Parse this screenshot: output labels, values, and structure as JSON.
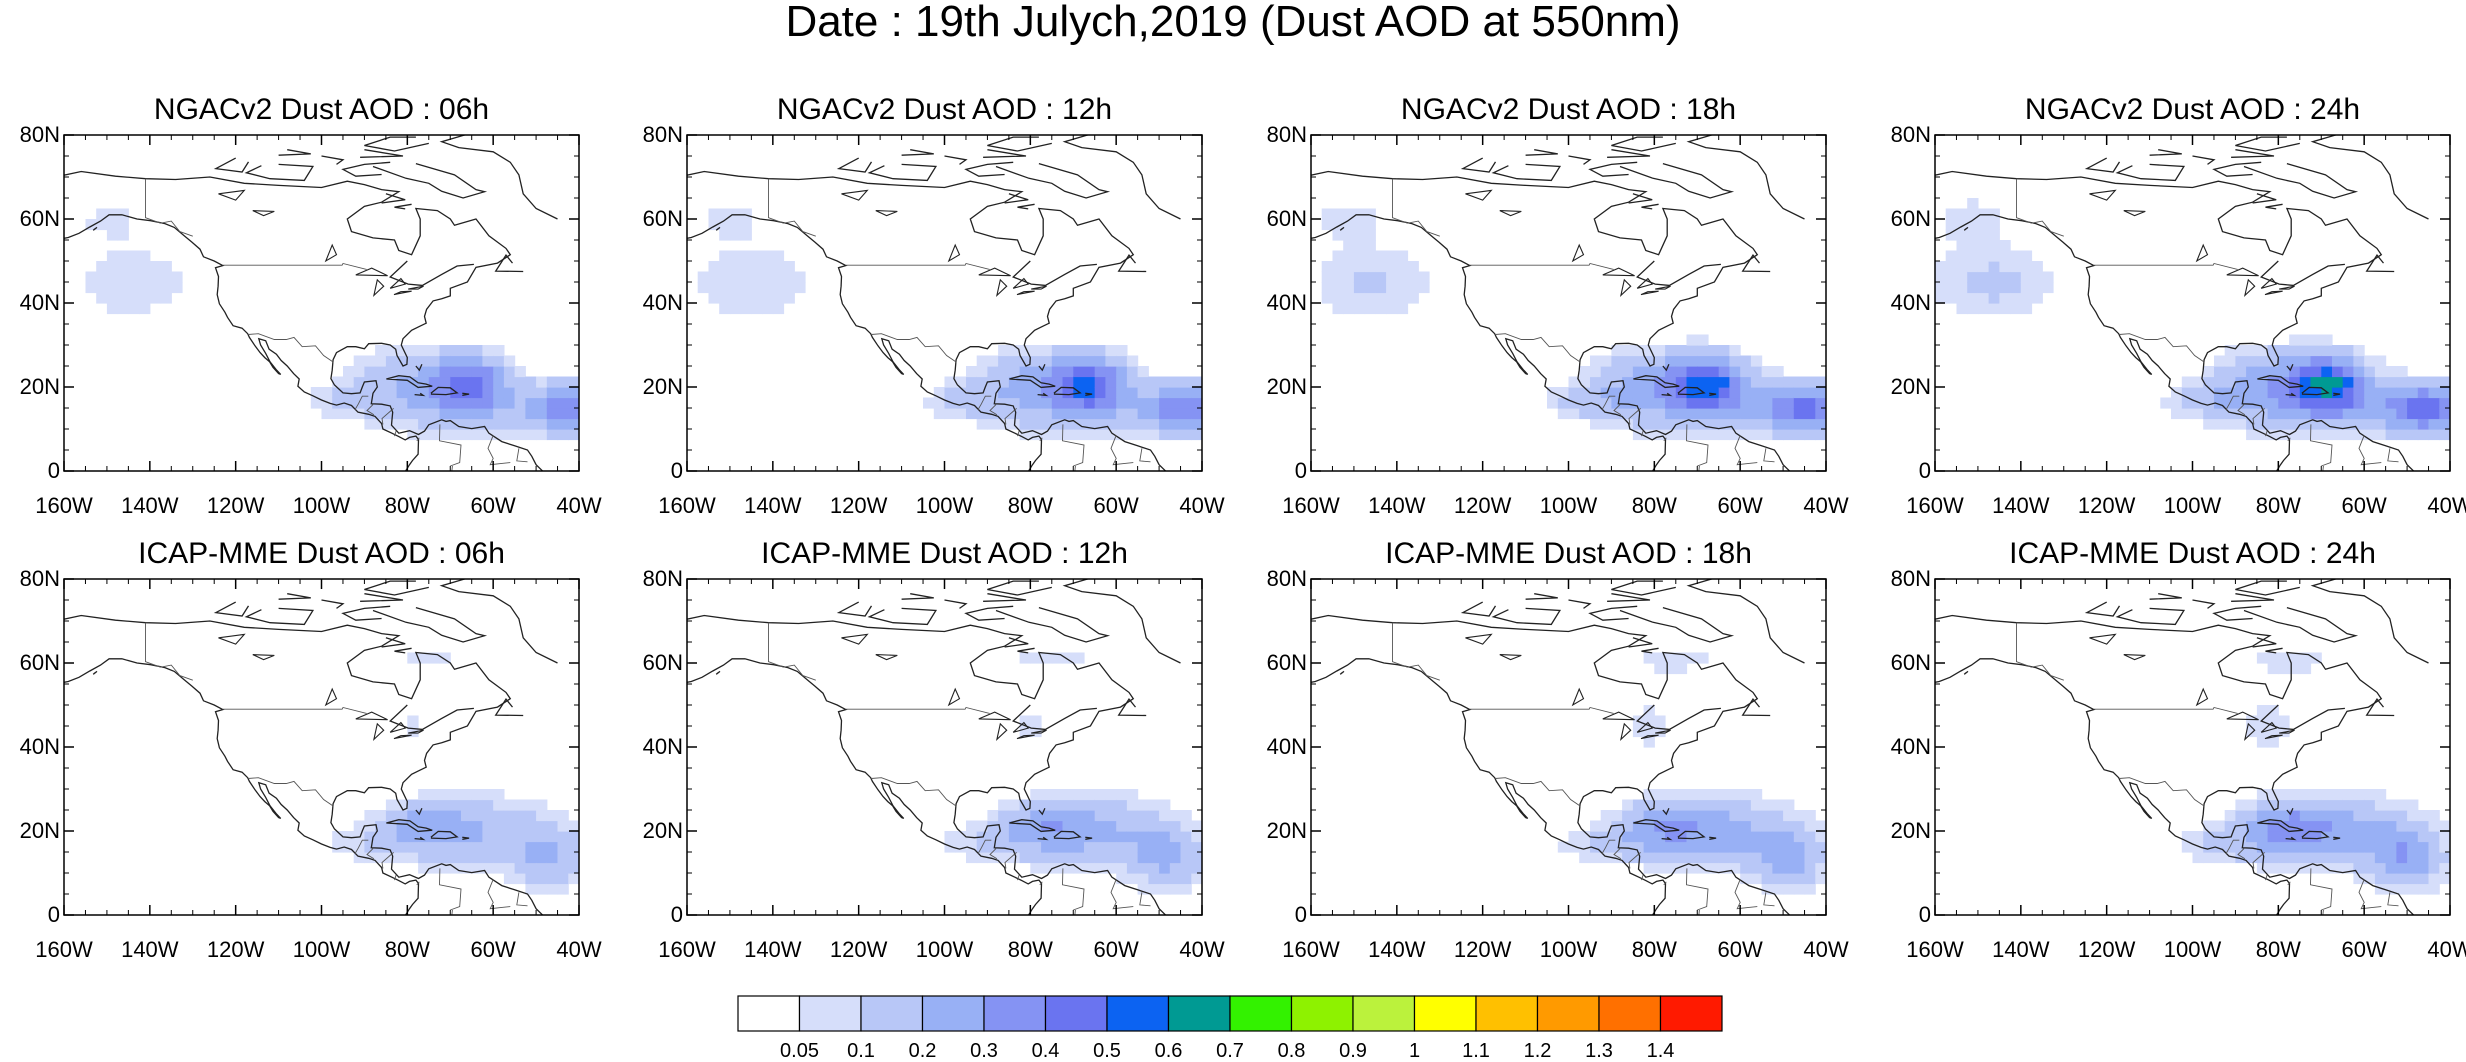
{
  "title": "Date : 19th Julych,2019 (Dust AOD at 550nm)",
  "colors": {
    "coast": "#222222",
    "levels": [
      "#ffffff",
      "#d6defa",
      "#b8c7f7",
      "#98b0f5",
      "#8593f3",
      "#6a74f0",
      "#0c63f2",
      "#009a93",
      "#33f200",
      "#8ef200",
      "#bbf23c",
      "#ffff00",
      "#ffc000",
      "#ff9a00",
      "#ff7000",
      "#ff1a00"
    ]
  },
  "axes": {
    "y_ticks": [
      "80N",
      "60N",
      "40N",
      "20N",
      "0"
    ],
    "x_ticks": [
      "160W",
      "140W",
      "120W",
      "100W",
      "80W",
      "60W",
      "40W"
    ],
    "lon_range": [
      -160,
      -40
    ],
    "lat_range": [
      0,
      80
    ]
  },
  "panels": [
    {
      "title": "NGACv2 Dust AOD : 06h",
      "model": "ngac",
      "hour": 6
    },
    {
      "title": "NGACv2 Dust AOD : 12h",
      "model": "ngac",
      "hour": 12
    },
    {
      "title": "NGACv2 Dust AOD : 18h",
      "model": "ngac",
      "hour": 18
    },
    {
      "title": "NGACv2 Dust AOD : 24h",
      "model": "ngac",
      "hour": 24
    },
    {
      "title": "ICAP-MME Dust AOD : 06h",
      "model": "icap",
      "hour": 6
    },
    {
      "title": "ICAP-MME Dust AOD : 12h",
      "model": "icap",
      "hour": 12
    },
    {
      "title": "ICAP-MME Dust AOD : 18h",
      "model": "icap",
      "hour": 18
    },
    {
      "title": "ICAP-MME Dust AOD : 24h",
      "model": "icap",
      "hour": 24
    }
  ],
  "colorbar": {
    "labels": [
      "0.05",
      "0.1",
      "0.2",
      "0.3",
      "0.4",
      "0.5",
      "0.6",
      "0.7",
      "0.8",
      "0.9",
      "1",
      "1.1",
      "1.2",
      "1.3",
      "1.4"
    ],
    "colors": [
      "#ffffff",
      "#d6defa",
      "#b8c7f7",
      "#98b0f5",
      "#8593f3",
      "#6a74f0",
      "#0c63f2",
      "#009a93",
      "#33f200",
      "#8ef200",
      "#bbf23c",
      "#ffff00",
      "#ffc000",
      "#ff9a00",
      "#ff7000",
      "#ff1a00"
    ]
  },
  "chart_data": {
    "type": "heatmap",
    "variable": "Dust AOD at 550nm",
    "levels": [
      0.05,
      0.1,
      0.2,
      0.3,
      0.4,
      0.5,
      0.6,
      0.7,
      0.8,
      0.9,
      1,
      1.1,
      1.2,
      1.3,
      1.4
    ],
    "blobs": {
      "ngac": [
        {
          "lon": -66,
          "lat": 21,
          "rx": 9,
          "ry": 7,
          "aod": 0.42
        },
        {
          "lon": -44,
          "lat": 15,
          "rx": 10,
          "ry": 6,
          "aod": 0.35
        },
        {
          "lon": -80,
          "lat": 22,
          "rx": 14,
          "ry": 8,
          "aod": 0.18
        },
        {
          "lon": -68,
          "lat": 15,
          "rx": 26,
          "ry": 8,
          "aod": 0.14
        },
        {
          "lon": -145,
          "lat": 45,
          "rx": 16,
          "ry": 10,
          "aod": 0.1
        },
        {
          "lon": -95,
          "lat": 17,
          "rx": 10,
          "ry": 4,
          "aod": 0.1
        },
        {
          "lon": -150,
          "lat": 60,
          "rx": 8,
          "ry": 5,
          "aod": 0.08
        }
      ],
      "icap": [
        {
          "lon": -66,
          "lat": 20,
          "rx": 18,
          "ry": 9,
          "aod": 0.22
        },
        {
          "lon": -48,
          "lat": 14,
          "rx": 9,
          "ry": 8,
          "aod": 0.22
        },
        {
          "lon": -78,
          "lat": 22,
          "rx": 10,
          "ry": 5,
          "aod": 0.15
        },
        {
          "lon": -88,
          "lat": 17,
          "rx": 16,
          "ry": 5,
          "aod": 0.1
        },
        {
          "lon": -75,
          "lat": 61,
          "rx": 12,
          "ry": 4,
          "aod": 0.07
        },
        {
          "lon": -80,
          "lat": 45,
          "rx": 10,
          "ry": 8,
          "aod": 0.06
        }
      ]
    }
  }
}
